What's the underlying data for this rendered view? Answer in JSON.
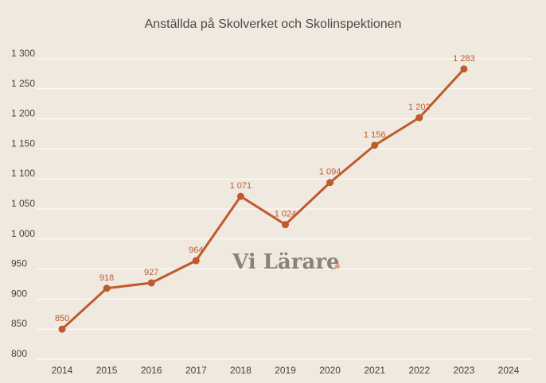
{
  "chart_data": {
    "type": "line",
    "title": "Anställda på Skolverket och Skolinspektionen",
    "xlabel": "",
    "ylabel": "",
    "x": [
      "2014",
      "2015",
      "2016",
      "2017",
      "2018",
      "2019",
      "2020",
      "2021",
      "2022",
      "2023",
      "2024"
    ],
    "series": [
      {
        "values": [
          850,
          918,
          927,
          964,
          1071,
          1024,
          1094,
          1156,
          1202,
          1283,
          null
        ],
        "labels": [
          "850",
          "918",
          "927",
          "964",
          "1 071",
          "1 024",
          "1 094",
          "1 156",
          "1 202",
          "1 283",
          ""
        ]
      }
    ],
    "yticks": [
      800,
      850,
      900,
      950,
      1000,
      1050,
      1100,
      1150,
      1200,
      1250,
      1300
    ],
    "ytick_labels": [
      "800",
      "850",
      "900",
      "950",
      "1 000",
      "1 050",
      "1 100",
      "1 150",
      "1 200",
      "1 250",
      "1 300"
    ],
    "ylim": [
      800,
      1300
    ],
    "grid": true,
    "legend": "none",
    "watermark": "Vi Lärare",
    "colors": {
      "line": "#bf5a2c",
      "label": "#bf5a2c",
      "grid": "#ffffff",
      "background": "#efe9e0",
      "watermark_text": "#8a8278",
      "watermark_dot": "#e49a7a"
    }
  }
}
